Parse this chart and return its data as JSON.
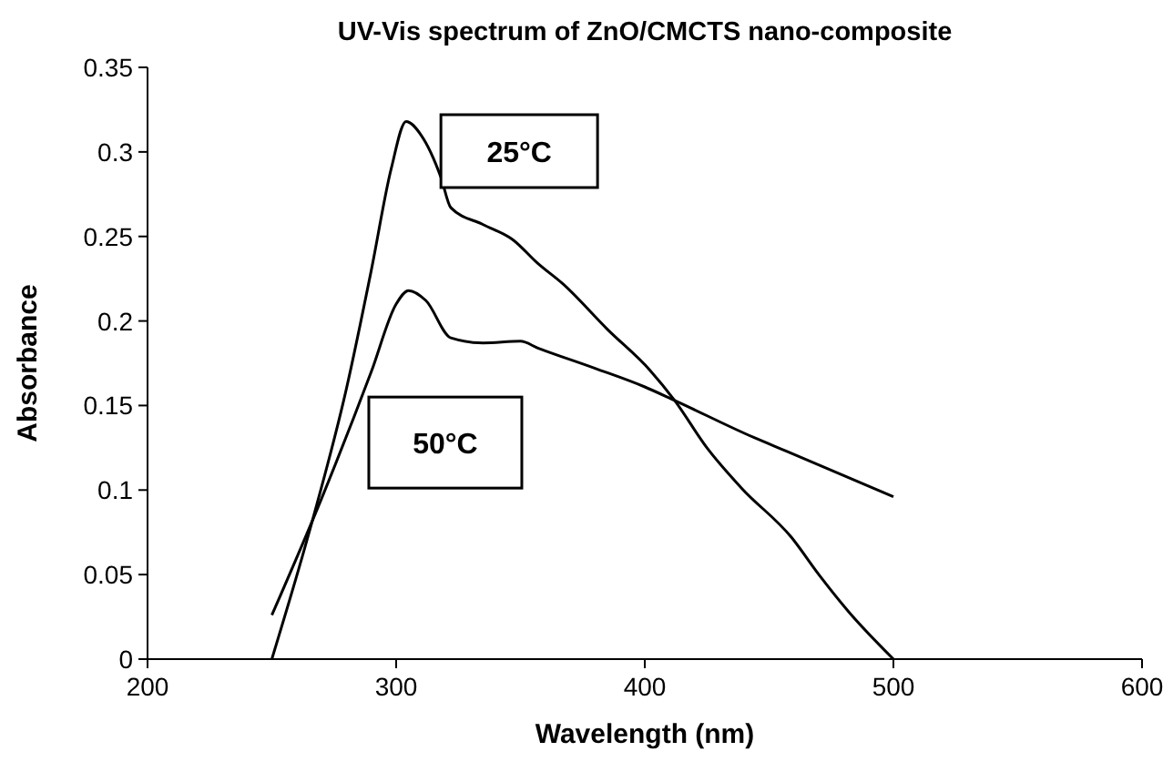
{
  "chart_data": {
    "type": "line",
    "title": "UV-Vis spectrum of ZnO/CMCTS nano-composite",
    "xlabel": "Wavelength (nm)",
    "ylabel": "Absorbance",
    "xlim": [
      200,
      600
    ],
    "xticks": [
      200,
      300,
      400,
      500,
      600
    ],
    "ylim": [
      0,
      0.35
    ],
    "yticks": [
      0,
      0.05,
      0.1,
      0.15,
      0.2,
      0.25,
      0.3,
      0.35
    ],
    "grid": false,
    "marker": "none",
    "line_style": "solid",
    "series": [
      {
        "name": "25°C",
        "color": "#000000",
        "x": [
          250,
          265,
          280,
          290,
          298,
          304,
          310,
          318,
          322,
          335,
          347,
          357,
          367,
          385,
          402,
          412,
          425,
          439,
          459,
          470,
          482,
          500
        ],
        "values": [
          0,
          0.075,
          0.16,
          0.23,
          0.29,
          0.318,
          0.31,
          0.285,
          0.267,
          0.257,
          0.248,
          0.234,
          0.222,
          0.195,
          0.171,
          0.153,
          0.125,
          0.101,
          0.072,
          0.05,
          0.028,
          0
        ]
      },
      {
        "name": "50°C",
        "color": "#000000",
        "x": [
          250,
          270,
          290,
          300,
          305,
          312,
          322,
          335,
          350,
          357,
          380,
          400,
          412,
          444,
          457,
          500
        ],
        "values": [
          0.026,
          0.095,
          0.17,
          0.21,
          0.218,
          0.212,
          0.19,
          0.187,
          0.188,
          0.184,
          0.172,
          0.161,
          0.153,
          0.131,
          0.123,
          0.096
        ]
      }
    ]
  }
}
